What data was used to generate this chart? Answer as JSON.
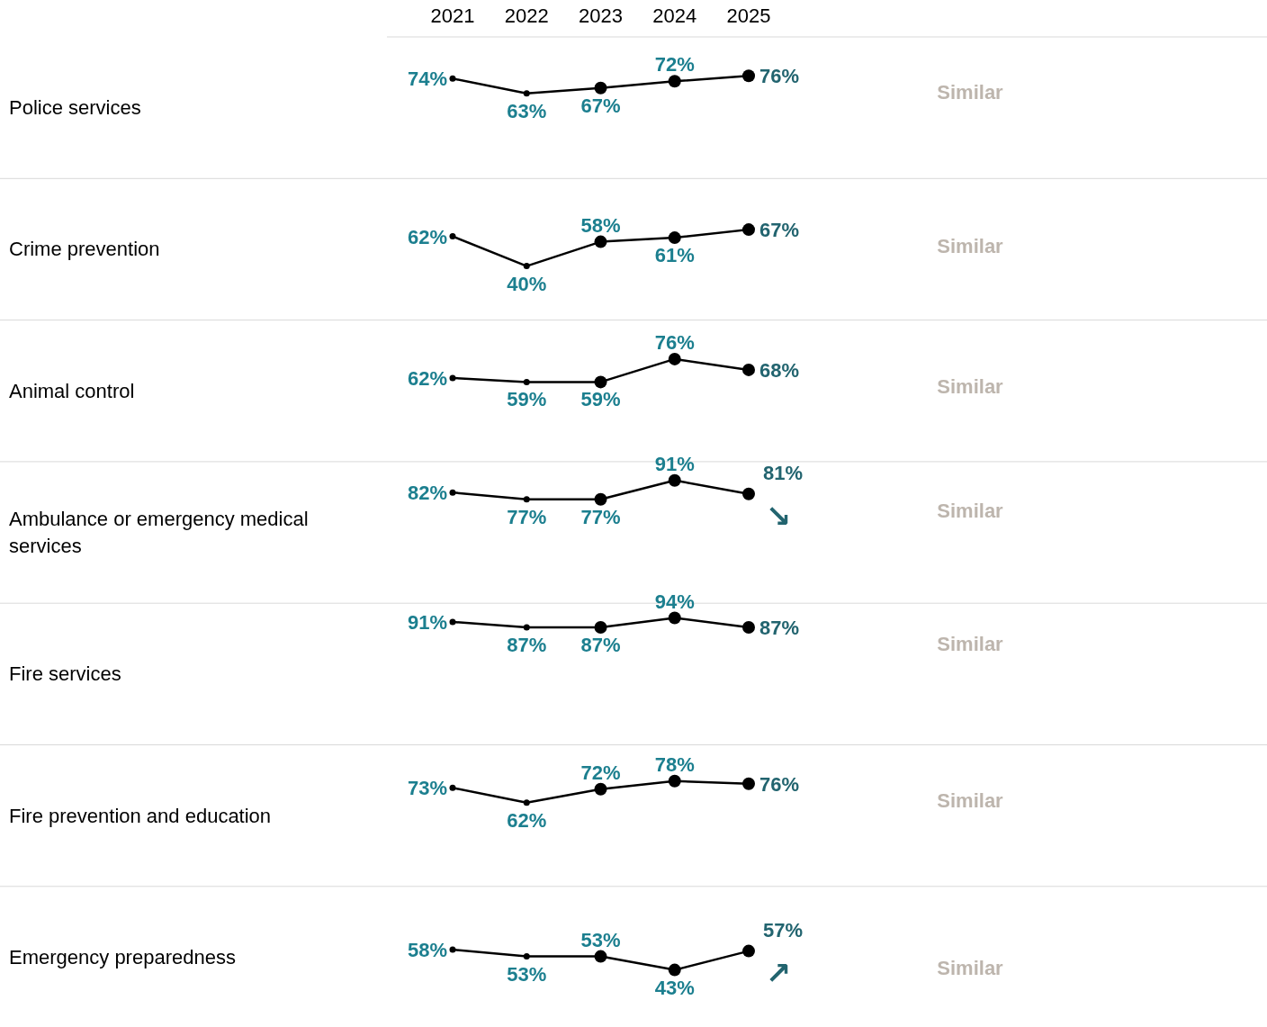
{
  "chart_data": [
    {
      "type": "line",
      "ylabel": "Police services",
      "categories": [
        "2021",
        "2022",
        "2023",
        "2024",
        "2025"
      ],
      "values": [
        74,
        63,
        67,
        72,
        76
      ],
      "color": "#000000",
      "marker": "circle",
      "value_labels": [
        "74%",
        "63%",
        "67%",
        "72%",
        "76%"
      ],
      "tick_labels": "x",
      "annotations": [
        "Similar"
      ]
    },
    {
      "type": "line",
      "ylabel": "Crime prevention",
      "categories": [
        "2021",
        "2022",
        "2023",
        "2024",
        "2025"
      ],
      "values": [
        62,
        40,
        58,
        61,
        67
      ],
      "color": "#000000",
      "marker": "circle",
      "value_labels": [
        "62%",
        "40%",
        "58%",
        "61%",
        "67%"
      ],
      "tick_labels": false,
      "annotations": [
        "Similar"
      ]
    },
    {
      "type": "line",
      "ylabel": "Animal control",
      "categories": [
        "2021",
        "2022",
        "2023",
        "2024",
        "2025"
      ],
      "values": [
        62,
        59,
        59,
        76,
        68
      ],
      "color": "#000000",
      "marker": "circle",
      "value_labels": [
        "62%",
        "59%",
        "59%",
        "76%",
        "68%"
      ],
      "tick_labels": false,
      "annotations": [
        "Similar"
      ]
    },
    {
      "type": "line",
      "ylabel": "Ambulance or emergency medical services",
      "categories": [
        "2021",
        "2022",
        "2023",
        "2024",
        "2025"
      ],
      "values": [
        82,
        77,
        77,
        91,
        81
      ],
      "color": "#000000",
      "marker": "circle",
      "value_labels": [
        "82%",
        "77%",
        "77%",
        "91%",
        "81%"
      ],
      "tick_labels": false,
      "annotations": [
        "Similar",
        "↘"
      ]
    },
    {
      "type": "line",
      "ylabel": "Fire services",
      "categories": [
        "2021",
        "2022",
        "2023",
        "2024",
        "2025"
      ],
      "values": [
        91,
        87,
        87,
        94,
        87
      ],
      "color": "#000000",
      "marker": "circle",
      "value_labels": [
        "91%",
        "87%",
        "87%",
        "94%",
        "87%"
      ],
      "tick_labels": false,
      "annotations": [
        "Similar"
      ]
    },
    {
      "type": "line",
      "ylabel": "Fire prevention and education",
      "categories": [
        "2021",
        "2022",
        "2023",
        "2024",
        "2025"
      ],
      "values": [
        73,
        62,
        72,
        78,
        76
      ],
      "color": "#000000",
      "marker": "circle",
      "value_labels": [
        "73%",
        "62%",
        "72%",
        "78%",
        "76%"
      ],
      "tick_labels": false,
      "annotations": [
        "Similar"
      ]
    },
    {
      "type": "line",
      "ylabel": "Emergency preparedness",
      "categories": [
        "2021",
        "2022",
        "2023",
        "2024",
        "2025"
      ],
      "values": [
        58,
        53,
        53,
        43,
        57
      ],
      "color": "#000000",
      "marker": "circle",
      "value_labels": [
        "58%",
        "53%",
        "53%",
        "43%",
        "57%"
      ],
      "tick_labels": false,
      "annotations": [
        "Similar",
        "↗"
      ]
    }
  ]
}
